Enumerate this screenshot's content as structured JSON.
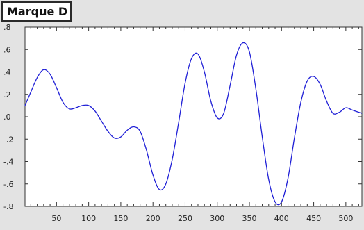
{
  "title": "Marque D",
  "colors": {
    "background": "#e3e3e3",
    "plot_area": "#ffffff",
    "line": "#1f1fd6",
    "axis": "#333333"
  },
  "chart_data": {
    "type": "line",
    "title": "Marque D",
    "xlabel": "",
    "ylabel": "",
    "xlim": [
      1,
      525
    ],
    "ylim": [
      -0.8,
      0.8
    ],
    "grid": false,
    "x_ticks": [
      50,
      100,
      150,
      200,
      250,
      300,
      350,
      400,
      450,
      500
    ],
    "x_tick_labels": [
      "50",
      "100",
      "150",
      "200",
      "250",
      "300",
      "350",
      "400",
      "450",
      "500"
    ],
    "y_ticks": [
      0.8,
      0.6,
      0.4,
      0.2,
      0.0,
      -0.2,
      -0.4,
      -0.6,
      -0.8
    ],
    "y_tick_labels": [
      ".8",
      ".6",
      ".4",
      ".2",
      ".0",
      "-.2",
      "-.4",
      "-.6",
      "-.8"
    ],
    "series": [
      {
        "color": "#1f1fd6",
        "x": [
          1,
          10,
          20,
          30,
          40,
          50,
          60,
          70,
          80,
          90,
          100,
          110,
          120,
          130,
          140,
          150,
          160,
          170,
          180,
          190,
          200,
          210,
          220,
          230,
          240,
          250,
          260,
          270,
          280,
          290,
          300,
          310,
          320,
          330,
          340,
          350,
          360,
          370,
          380,
          390,
          400,
          410,
          420,
          430,
          440,
          450,
          460,
          470,
          480,
          490,
          500,
          510,
          525
        ],
        "y": [
          0.1,
          0.22,
          0.35,
          0.42,
          0.38,
          0.26,
          0.13,
          0.07,
          0.08,
          0.1,
          0.1,
          0.05,
          -0.04,
          -0.13,
          -0.19,
          -0.18,
          -0.12,
          -0.09,
          -0.13,
          -0.3,
          -0.52,
          -0.65,
          -0.6,
          -0.38,
          -0.05,
          0.3,
          0.52,
          0.56,
          0.4,
          0.14,
          -0.01,
          0.03,
          0.28,
          0.55,
          0.66,
          0.58,
          0.25,
          -0.18,
          -0.56,
          -0.76,
          -0.76,
          -0.55,
          -0.19,
          0.13,
          0.32,
          0.36,
          0.29,
          0.14,
          0.03,
          0.04,
          0.08,
          0.06,
          0.03
        ]
      }
    ]
  }
}
